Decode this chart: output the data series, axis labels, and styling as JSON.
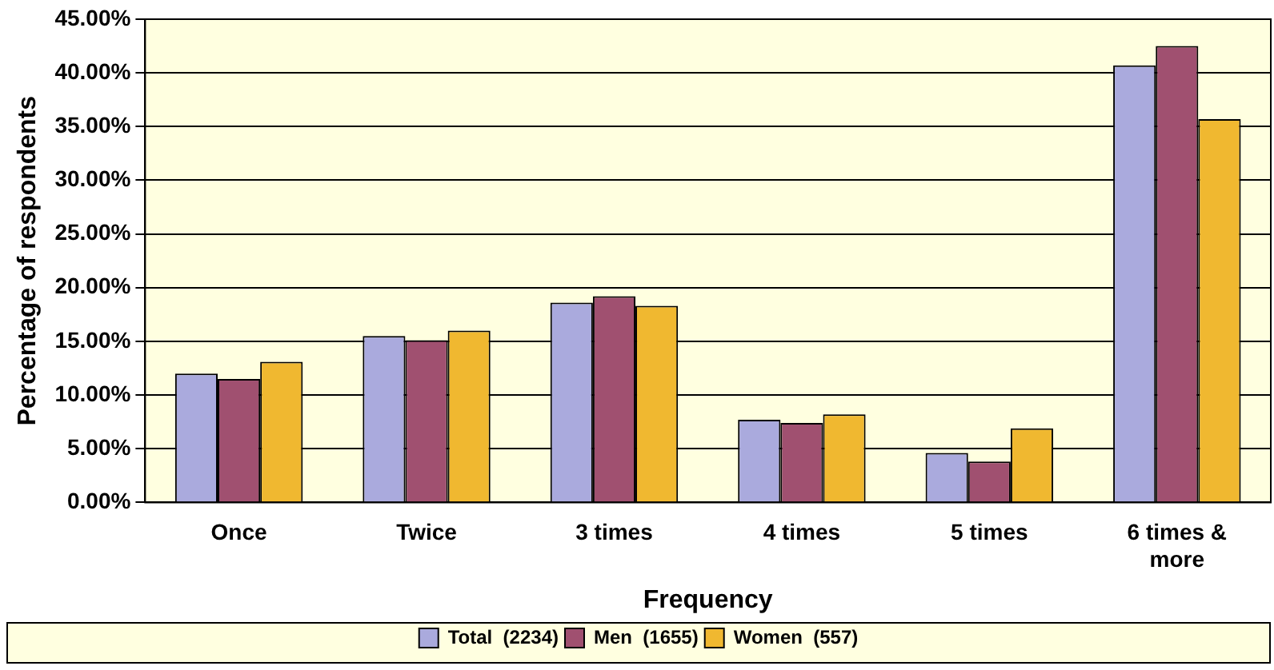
{
  "chart_data": {
    "type": "bar",
    "xlabel": "Frequency",
    "ylabel": "Percentage of respondents",
    "categories": [
      "Once",
      "Twice",
      "3 times",
      "4 times",
      "5 times",
      "6 times & more"
    ],
    "series": [
      {
        "name": "Total  (2234)",
        "color": "#aaaadd",
        "values": [
          12.0,
          15.5,
          18.6,
          7.7,
          4.6,
          40.7
        ]
      },
      {
        "name": "Men  (1655)",
        "color": "#a05070",
        "values": [
          11.5,
          15.1,
          19.2,
          7.4,
          3.8,
          42.5
        ]
      },
      {
        "name": "Women  (557)",
        "color": "#f0b830",
        "values": [
          13.1,
          16.0,
          18.3,
          8.2,
          6.9,
          35.7
        ]
      }
    ],
    "ylim": [
      0,
      45
    ],
    "yticks": [
      {
        "value": 0,
        "label": "0.00%"
      },
      {
        "value": 5,
        "label": "5.00%"
      },
      {
        "value": 10,
        "label": "10.00%"
      },
      {
        "value": 15,
        "label": "15.00%"
      },
      {
        "value": 20,
        "label": "20.00%"
      },
      {
        "value": 25,
        "label": "25.00%"
      },
      {
        "value": 30,
        "label": "30.00%"
      },
      {
        "value": 35,
        "label": "35.00%"
      },
      {
        "value": 40,
        "label": "40.00%"
      },
      {
        "value": 45,
        "label": "45.00%"
      }
    ],
    "grid": "y",
    "legend": "bottom"
  }
}
